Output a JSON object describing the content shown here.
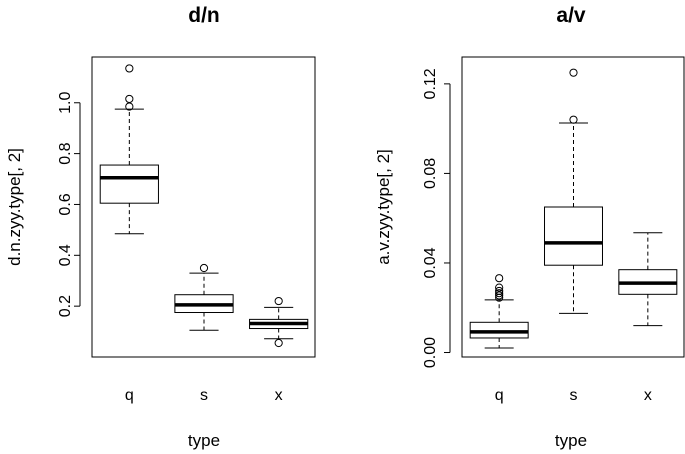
{
  "chart_data": [
    {
      "type": "boxplot",
      "title": "d/n",
      "xlabel": "type",
      "ylabel": "d.n.zyy.type[, 2]",
      "categories": [
        "q",
        "s",
        "x"
      ],
      "ylim": [
        0.0,
        1.18
      ],
      "yticks": [
        0.2,
        0.4,
        0.6,
        0.8,
        1.0
      ],
      "ytick_labels": [
        "0.2",
        "0.4",
        "0.6",
        "0.8",
        "1.0"
      ],
      "boxes": [
        {
          "category": "q",
          "whisker_low": 0.485,
          "q1": 0.605,
          "median": 0.705,
          "q3": 0.755,
          "whisker_high": 0.975,
          "outliers": [
            0.985,
            1.015,
            1.135
          ]
        },
        {
          "category": "s",
          "whisker_low": 0.105,
          "q1": 0.175,
          "median": 0.205,
          "q3": 0.245,
          "whisker_high": 0.33,
          "outliers": [
            0.35
          ]
        },
        {
          "category": "x",
          "whisker_low": 0.072,
          "q1": 0.112,
          "median": 0.132,
          "q3": 0.148,
          "whisker_high": 0.195,
          "outliers": [
            0.055,
            0.22
          ]
        }
      ]
    },
    {
      "type": "boxplot",
      "title": "a/v",
      "xlabel": "type",
      "ylabel": "a.v.zyy.type[, 2]",
      "categories": [
        "q",
        "s",
        "x"
      ],
      "ylim": [
        -0.002,
        0.132
      ],
      "yticks": [
        0.0,
        0.04,
        0.08,
        0.12
      ],
      "ytick_labels": [
        "0.00",
        "0.04",
        "0.08",
        "0.12"
      ],
      "boxes": [
        {
          "category": "q",
          "whisker_low": 0.002,
          "q1": 0.0065,
          "median": 0.0092,
          "q3": 0.0135,
          "whisker_high": 0.0235,
          "outliers": [
            0.0245,
            0.0255,
            0.0265,
            0.0275,
            0.029,
            0.0332
          ]
        },
        {
          "category": "s",
          "whisker_low": 0.0175,
          "q1": 0.039,
          "median": 0.049,
          "q3": 0.065,
          "whisker_high": 0.1025,
          "outliers": [
            0.104,
            0.125
          ]
        },
        {
          "category": "x",
          "whisker_low": 0.012,
          "q1": 0.026,
          "median": 0.031,
          "q3": 0.037,
          "whisker_high": 0.0535,
          "outliers": []
        }
      ]
    }
  ]
}
